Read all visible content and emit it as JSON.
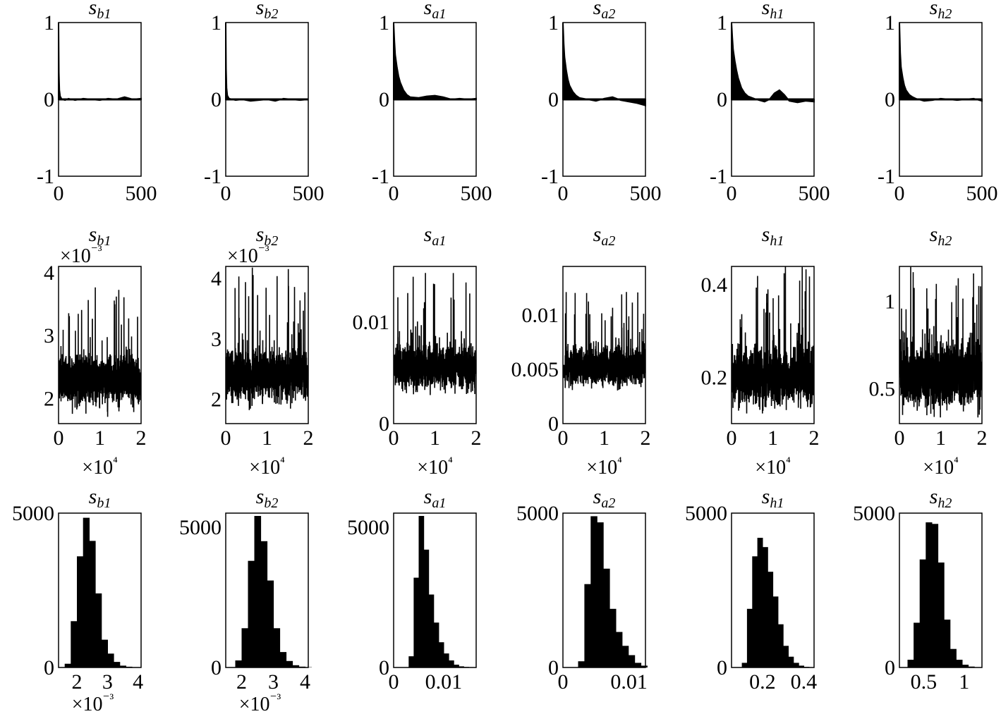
{
  "figure": {
    "rows": [
      "trace_autocorrelation",
      "trace_samples",
      "trace_histogram"
    ]
  },
  "chart_data": [
    {
      "type": "line",
      "kind": "autocorrelation",
      "row": 0,
      "col": 0,
      "title": "s",
      "subscript": "b1",
      "xlim": [
        0,
        500
      ],
      "ylim": [
        -1,
        1
      ],
      "xticks": [
        "0",
        "500"
      ],
      "yticks": [
        "-1",
        "0",
        "1"
      ],
      "x": [
        0,
        2,
        5,
        10,
        20,
        40,
        60,
        100,
        150,
        200,
        250,
        300,
        350,
        400,
        450,
        500
      ],
      "values": [
        1,
        0.35,
        0.12,
        0.04,
        0.0,
        -0.01,
        0.01,
        -0.01,
        0.01,
        0.0,
        -0.01,
        0.01,
        0.0,
        0.03,
        0.0,
        0.01
      ]
    },
    {
      "type": "line",
      "kind": "autocorrelation",
      "row": 0,
      "col": 1,
      "title": "s",
      "subscript": "b2",
      "xlim": [
        0,
        500
      ],
      "ylim": [
        -1,
        1
      ],
      "xticks": [
        "0",
        "500"
      ],
      "yticks": [
        "-1",
        "0",
        "1"
      ],
      "x": [
        0,
        2,
        5,
        10,
        20,
        40,
        60,
        100,
        150,
        200,
        250,
        300,
        350,
        400,
        450,
        500
      ],
      "values": [
        1,
        0.4,
        0.15,
        0.05,
        0.01,
        0.0,
        -0.01,
        0.0,
        -0.02,
        -0.01,
        0.0,
        -0.02,
        0.01,
        0.0,
        -0.01,
        0.0
      ]
    },
    {
      "type": "line",
      "kind": "autocorrelation",
      "row": 0,
      "col": 2,
      "title": "s",
      "subscript": "a1",
      "xlim": [
        0,
        500
      ],
      "ylim": [
        -1,
        1
      ],
      "xticks": [
        "0",
        "500"
      ],
      "yticks": [
        "-1",
        "0",
        "1"
      ],
      "x": [
        0,
        5,
        10,
        20,
        30,
        40,
        60,
        80,
        100,
        150,
        200,
        250,
        300,
        350,
        400,
        450,
        500
      ],
      "values": [
        1,
        0.75,
        0.58,
        0.42,
        0.3,
        0.22,
        0.12,
        0.06,
        0.03,
        0.02,
        0.04,
        0.05,
        0.03,
        0.0,
        0.01,
        0.0,
        0.01
      ]
    },
    {
      "type": "line",
      "kind": "autocorrelation",
      "row": 0,
      "col": 3,
      "title": "s",
      "subscript": "a2",
      "xlim": [
        0,
        500
      ],
      "ylim": [
        -1,
        1
      ],
      "xticks": [
        "0",
        "500"
      ],
      "yticks": [
        "-1",
        "0",
        "1"
      ],
      "x": [
        0,
        5,
        10,
        20,
        30,
        40,
        60,
        80,
        100,
        150,
        200,
        250,
        300,
        350,
        400,
        450,
        500
      ],
      "values": [
        1,
        0.72,
        0.55,
        0.38,
        0.26,
        0.18,
        0.1,
        0.05,
        0.02,
        0.0,
        -0.02,
        0.01,
        0.03,
        -0.01,
        -0.03,
        -0.05,
        -0.08
      ]
    },
    {
      "type": "line",
      "kind": "autocorrelation",
      "row": 0,
      "col": 4,
      "title": "s",
      "subscript": "h1",
      "xlim": [
        0,
        500
      ],
      "ylim": [
        -1,
        1
      ],
      "xticks": [
        "0",
        "500"
      ],
      "yticks": [
        "-1",
        "0",
        "1"
      ],
      "x": [
        0,
        5,
        10,
        20,
        30,
        40,
        60,
        80,
        100,
        150,
        200,
        230,
        260,
        290,
        320,
        350,
        400,
        450,
        500
      ],
      "values": [
        1,
        0.8,
        0.65,
        0.5,
        0.38,
        0.28,
        0.15,
        0.08,
        0.04,
        0.0,
        -0.03,
        0.0,
        0.08,
        0.12,
        0.06,
        -0.02,
        -0.04,
        -0.02,
        -0.03
      ]
    },
    {
      "type": "line",
      "kind": "autocorrelation",
      "row": 0,
      "col": 5,
      "title": "s",
      "subscript": "h2",
      "xlim": [
        0,
        500
      ],
      "ylim": [
        -1,
        1
      ],
      "xticks": [
        "0",
        "500"
      ],
      "yticks": [
        "-1",
        "0",
        "1"
      ],
      "x": [
        0,
        5,
        10,
        20,
        30,
        40,
        60,
        80,
        100,
        150,
        200,
        250,
        300,
        350,
        400,
        450,
        500
      ],
      "values": [
        1,
        0.6,
        0.42,
        0.28,
        0.18,
        0.12,
        0.06,
        0.03,
        0.01,
        -0.02,
        -0.01,
        0.01,
        0.0,
        -0.01,
        0.0,
        0.01,
        -0.02
      ]
    },
    {
      "type": "line",
      "kind": "trace",
      "row": 1,
      "col": 0,
      "title": "s",
      "subscript": "b1",
      "xlim": [
        0,
        20000
      ],
      "ylim": [
        0.0016,
        0.0041
      ],
      "xticks": [
        "0",
        "1",
        "2"
      ],
      "yticks": [
        "2",
        "3",
        "4"
      ],
      "ytick_values": [
        0.002,
        0.003,
        0.004
      ],
      "x_multiplier": "×10⁴",
      "y_multiplier": "×10⁻³",
      "center": 0.0023,
      "spread": 0.00065,
      "floor": 0.0017,
      "peak": 0.0038
    },
    {
      "type": "line",
      "kind": "trace",
      "row": 1,
      "col": 1,
      "title": "s",
      "subscript": "b2",
      "xlim": [
        0,
        20000
      ],
      "ylim": [
        0.0016,
        0.0042
      ],
      "xticks": [
        "0",
        "1",
        "2"
      ],
      "yticks": [
        "2",
        "3",
        "4"
      ],
      "ytick_values": [
        0.002,
        0.003,
        0.004
      ],
      "x_multiplier": "×10⁴",
      "y_multiplier": "×10⁻³",
      "center": 0.0024,
      "spread": 0.0007,
      "floor": 0.0018,
      "peak": 0.0042
    },
    {
      "type": "line",
      "kind": "trace",
      "row": 1,
      "col": 2,
      "title": "s",
      "subscript": "a1",
      "xlim": [
        0,
        20000
      ],
      "ylim": [
        0,
        0.0155
      ],
      "xticks": [
        "0",
        "1",
        "2"
      ],
      "yticks": [
        "0",
        "0.01"
      ],
      "ytick_values": [
        0,
        0.01
      ],
      "x_multiplier": "×10⁴",
      "center": 0.0055,
      "spread": 0.0035,
      "floor": 0.0027,
      "peak": 0.0155
    },
    {
      "type": "line",
      "kind": "trace",
      "row": 1,
      "col": 3,
      "title": "s",
      "subscript": "a2",
      "xlim": [
        0,
        20000
      ],
      "ylim": [
        0,
        0.0145
      ],
      "xticks": [
        "0",
        "1",
        "2"
      ],
      "yticks": [
        "0",
        "0.005",
        "0.01"
      ],
      "ytick_values": [
        0,
        0.005,
        0.01
      ],
      "x_multiplier": "×10⁴",
      "center": 0.0053,
      "spread": 0.003,
      "floor": 0.003,
      "peak": 0.0125
    },
    {
      "type": "line",
      "kind": "trace",
      "row": 1,
      "col": 4,
      "title": "s",
      "subscript": "h1",
      "xlim": [
        0,
        20000
      ],
      "ylim": [
        0.1,
        0.44
      ],
      "xticks": [
        "0",
        "1",
        "2"
      ],
      "yticks": [
        "0.2",
        "0.4"
      ],
      "ytick_values": [
        0.2,
        0.4
      ],
      "x_multiplier": "×10⁴",
      "center": 0.2,
      "spread": 0.1,
      "floor": 0.12,
      "peak": 0.44
    },
    {
      "type": "line",
      "kind": "trace",
      "row": 1,
      "col": 5,
      "title": "s",
      "subscript": "h2",
      "xlim": [
        0,
        20000
      ],
      "ylim": [
        0.3,
        1.2
      ],
      "xticks": [
        "0",
        "1",
        "2"
      ],
      "yticks": [
        "0.5",
        "1"
      ],
      "ytick_values": [
        0.5,
        1
      ],
      "x_multiplier": "×10⁴",
      "center": 0.58,
      "spread": 0.3,
      "floor": 0.33,
      "peak": 1.2
    },
    {
      "type": "bar",
      "kind": "histogram",
      "row": 2,
      "col": 0,
      "title": "s",
      "subscript": "b1",
      "xlim": [
        1.4,
        4.1
      ],
      "ylim": [
        0,
        5000
      ],
      "xticks": [
        "2",
        "3",
        "4"
      ],
      "xtick_values": [
        2,
        3,
        4
      ],
      "yticks": [
        "0",
        "5000"
      ],
      "ytick_values": [
        0,
        5000
      ],
      "x_multiplier": "×10⁻³",
      "bin_width": 0.2,
      "bin_start": 1.6,
      "values": [
        120,
        1500,
        3600,
        4850,
        4100,
        2400,
        900,
        450,
        180,
        60,
        25,
        10
      ]
    },
    {
      "type": "bar",
      "kind": "histogram",
      "row": 2,
      "col": 1,
      "title": "s",
      "subscript": "b2",
      "xlim": [
        1.5,
        4.1
      ],
      "ylim": [
        0,
        5500
      ],
      "xticks": [
        "2",
        "3",
        "4"
      ],
      "xtick_values": [
        2,
        3,
        4
      ],
      "yticks": [
        "0",
        "5000"
      ],
      "ytick_values": [
        0,
        5000
      ],
      "x_multiplier": "×10⁻³",
      "bin_width": 0.2,
      "bin_start": 1.8,
      "values": [
        250,
        1400,
        3800,
        5400,
        4500,
        3100,
        1400,
        550,
        230,
        80,
        30,
        10
      ]
    },
    {
      "type": "bar",
      "kind": "histogram",
      "row": 2,
      "col": 2,
      "title": "s",
      "subscript": "a1",
      "xlim": [
        0,
        0.0165
      ],
      "ylim": [
        0,
        5500
      ],
      "xticks": [
        "0",
        "0.01"
      ],
      "xtick_values": [
        0,
        0.01
      ],
      "yticks": [
        "0",
        "5000"
      ],
      "ytick_values": [
        0,
        5000
      ],
      "bin_width": 0.001,
      "bin_start": 0.003,
      "values": [
        400,
        3200,
        5400,
        4200,
        2600,
        1600,
        900,
        500,
        250,
        100,
        40,
        20,
        10
      ]
    },
    {
      "type": "bar",
      "kind": "histogram",
      "row": 2,
      "col": 3,
      "title": "s",
      "subscript": "a2",
      "xlim": [
        0,
        0.0125
      ],
      "ylim": [
        0,
        5000
      ],
      "xticks": [
        "0",
        "0.01"
      ],
      "xtick_values": [
        0,
        0.01
      ],
      "yticks": [
        "0",
        "5000"
      ],
      "ytick_values": [
        0,
        5000
      ],
      "bin_width": 0.00095,
      "bin_start": 0.0023,
      "values": [
        200,
        2700,
        4900,
        4700,
        3200,
        1900,
        1150,
        700,
        400,
        150,
        60
      ]
    },
    {
      "type": "bar",
      "kind": "histogram",
      "row": 2,
      "col": 4,
      "title": "s",
      "subscript": "h1",
      "xlim": [
        0.05,
        0.45
      ],
      "ylim": [
        0,
        5000
      ],
      "xticks": [
        "0.2",
        "0.4"
      ],
      "xtick_values": [
        0.2,
        0.4
      ],
      "yticks": [
        "0",
        "5000"
      ],
      "ytick_values": [
        0,
        5000
      ],
      "bin_width": 0.025,
      "bin_start": 0.1,
      "values": [
        150,
        1900,
        3600,
        4200,
        3900,
        3100,
        2300,
        1400,
        700,
        350,
        150,
        60,
        20
      ]
    },
    {
      "type": "bar",
      "kind": "histogram",
      "row": 2,
      "col": 5,
      "title": "s",
      "subscript": "h2",
      "xlim": [
        0.2,
        1.22
      ],
      "ylim": [
        0,
        5000
      ],
      "xticks": [
        "0.5",
        "1"
      ],
      "xtick_values": [
        0.5,
        1
      ],
      "yticks": [
        "0",
        "5000"
      ],
      "ytick_values": [
        0,
        5000
      ],
      "bin_width": 0.075,
      "bin_start": 0.3,
      "values": [
        250,
        1450,
        3500,
        4700,
        4650,
        3400,
        1550,
        600,
        250,
        90,
        30
      ]
    }
  ]
}
